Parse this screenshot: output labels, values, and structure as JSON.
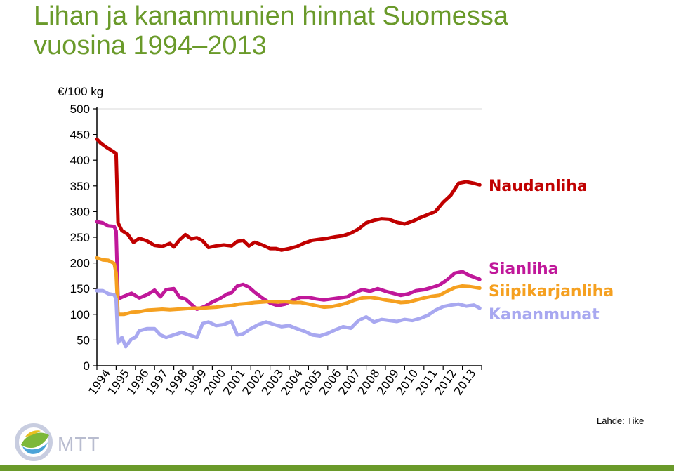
{
  "title_line1": "Lihan ja kananmunien hinnat Suomessa",
  "title_line2": "vuosina 1994–2013",
  "source": "Lähde: Tike",
  "logo_text": "MTT",
  "colors": {
    "title": "#6a9a2a",
    "naudanliha": "#c00000",
    "sianliha": "#c0189a",
    "siipikarjanliha": "#f5a020",
    "kananmunat": "#a8a8f0"
  },
  "chart_data": {
    "type": "line",
    "ylabel": "€/100 kg",
    "ylim": [
      0,
      500
    ],
    "yticks": [
      0,
      50,
      100,
      150,
      200,
      250,
      300,
      350,
      400,
      450,
      500
    ],
    "xlim": [
      1994,
      2014
    ],
    "xticks": [
      "1994",
      "1995",
      "1996",
      "1997",
      "1998",
      "1999",
      "2000",
      "2001",
      "2002",
      "2003",
      "2004",
      "2005",
      "2006",
      "2007",
      "2008",
      "2009",
      "2010",
      "2011",
      "2012",
      "2013"
    ],
    "series": [
      {
        "name": "Naudanliha",
        "color": "#c00000",
        "points": [
          [
            1994.0,
            441
          ],
          [
            1994.2,
            433
          ],
          [
            1994.5,
            425
          ],
          [
            1994.8,
            418
          ],
          [
            1995.0,
            413
          ],
          [
            1995.1,
            278
          ],
          [
            1995.3,
            263
          ],
          [
            1995.6,
            256
          ],
          [
            1995.9,
            240
          ],
          [
            1996.2,
            248
          ],
          [
            1996.6,
            243
          ],
          [
            1997.0,
            234
          ],
          [
            1997.4,
            232
          ],
          [
            1997.8,
            238
          ],
          [
            1998.0,
            231
          ],
          [
            1998.3,
            245
          ],
          [
            1998.6,
            255
          ],
          [
            1998.9,
            247
          ],
          [
            1999.2,
            249
          ],
          [
            1999.5,
            243
          ],
          [
            1999.8,
            230
          ],
          [
            2000.2,
            233
          ],
          [
            2000.6,
            235
          ],
          [
            2001.0,
            233
          ],
          [
            2001.3,
            242
          ],
          [
            2001.6,
            244
          ],
          [
            2001.9,
            233
          ],
          [
            2002.2,
            240
          ],
          [
            2002.6,
            235
          ],
          [
            2003.0,
            228
          ],
          [
            2003.3,
            228
          ],
          [
            2003.6,
            225
          ],
          [
            2004.0,
            228
          ],
          [
            2004.4,
            232
          ],
          [
            2004.8,
            239
          ],
          [
            2005.2,
            244
          ],
          [
            2005.6,
            246
          ],
          [
            2006.0,
            248
          ],
          [
            2006.4,
            251
          ],
          [
            2006.8,
            253
          ],
          [
            2007.2,
            258
          ],
          [
            2007.6,
            266
          ],
          [
            2008.0,
            278
          ],
          [
            2008.4,
            283
          ],
          [
            2008.8,
            286
          ],
          [
            2009.2,
            285
          ],
          [
            2009.6,
            279
          ],
          [
            2010.0,
            276
          ],
          [
            2010.4,
            281
          ],
          [
            2010.8,
            288
          ],
          [
            2011.2,
            294
          ],
          [
            2011.6,
            300
          ],
          [
            2012.0,
            318
          ],
          [
            2012.4,
            332
          ],
          [
            2012.8,
            355
          ],
          [
            2013.2,
            358
          ],
          [
            2013.6,
            355
          ],
          [
            2013.9,
            352
          ]
        ]
      },
      {
        "name": "Sianliha",
        "color": "#c0189a",
        "points": [
          [
            1994.0,
            280
          ],
          [
            1994.3,
            278
          ],
          [
            1994.6,
            272
          ],
          [
            1994.9,
            271
          ],
          [
            1995.0,
            262
          ],
          [
            1995.1,
            130
          ],
          [
            1995.4,
            135
          ],
          [
            1995.8,
            141
          ],
          [
            1996.2,
            132
          ],
          [
            1996.6,
            138
          ],
          [
            1997.0,
            147
          ],
          [
            1997.3,
            134
          ],
          [
            1997.6,
            148
          ],
          [
            1998.0,
            150
          ],
          [
            1998.3,
            133
          ],
          [
            1998.6,
            130
          ],
          [
            1998.9,
            120
          ],
          [
            1999.2,
            110
          ],
          [
            1999.6,
            115
          ],
          [
            2000.0,
            124
          ],
          [
            2000.4,
            131
          ],
          [
            2000.8,
            140
          ],
          [
            2001.0,
            142
          ],
          [
            2001.3,
            155
          ],
          [
            2001.6,
            158
          ],
          [
            2001.9,
            153
          ],
          [
            2002.2,
            143
          ],
          [
            2002.6,
            132
          ],
          [
            2003.0,
            122
          ],
          [
            2003.4,
            117
          ],
          [
            2003.8,
            120
          ],
          [
            2004.2,
            128
          ],
          [
            2004.6,
            133
          ],
          [
            2005.0,
            133
          ],
          [
            2005.4,
            130
          ],
          [
            2005.8,
            128
          ],
          [
            2006.2,
            130
          ],
          [
            2006.6,
            132
          ],
          [
            2007.0,
            134
          ],
          [
            2007.4,
            142
          ],
          [
            2007.8,
            148
          ],
          [
            2008.2,
            145
          ],
          [
            2008.6,
            150
          ],
          [
            2009.0,
            145
          ],
          [
            2009.4,
            141
          ],
          [
            2009.8,
            137
          ],
          [
            2010.2,
            140
          ],
          [
            2010.6,
            146
          ],
          [
            2011.0,
            148
          ],
          [
            2011.4,
            152
          ],
          [
            2011.8,
            157
          ],
          [
            2012.2,
            167
          ],
          [
            2012.6,
            180
          ],
          [
            2013.0,
            183
          ],
          [
            2013.4,
            175
          ],
          [
            2013.9,
            168
          ]
        ]
      },
      {
        "name": "Siipikarjanliha",
        "color": "#f5a020",
        "points": [
          [
            1994.0,
            210
          ],
          [
            1994.3,
            206
          ],
          [
            1994.6,
            205
          ],
          [
            1994.9,
            199
          ],
          [
            1995.0,
            180
          ],
          [
            1995.1,
            100
          ],
          [
            1995.4,
            100
          ],
          [
            1995.8,
            104
          ],
          [
            1996.2,
            105
          ],
          [
            1996.6,
            108
          ],
          [
            1997.0,
            109
          ],
          [
            1997.4,
            110
          ],
          [
            1997.8,
            109
          ],
          [
            1998.2,
            110
          ],
          [
            1998.6,
            111
          ],
          [
            1999.0,
            112
          ],
          [
            1999.4,
            112
          ],
          [
            1999.8,
            113
          ],
          [
            2000.2,
            114
          ],
          [
            2000.6,
            116
          ],
          [
            2001.0,
            117
          ],
          [
            2001.4,
            120
          ],
          [
            2001.8,
            121
          ],
          [
            2002.2,
            123
          ],
          [
            2002.6,
            124
          ],
          [
            2003.0,
            125
          ],
          [
            2003.4,
            124
          ],
          [
            2003.8,
            125
          ],
          [
            2004.2,
            123
          ],
          [
            2004.6,
            123
          ],
          [
            2005.0,
            120
          ],
          [
            2005.4,
            117
          ],
          [
            2005.8,
            114
          ],
          [
            2006.2,
            115
          ],
          [
            2006.6,
            118
          ],
          [
            2007.0,
            122
          ],
          [
            2007.4,
            128
          ],
          [
            2007.8,
            132
          ],
          [
            2008.2,
            133
          ],
          [
            2008.6,
            131
          ],
          [
            2009.0,
            128
          ],
          [
            2009.4,
            126
          ],
          [
            2009.8,
            123
          ],
          [
            2010.2,
            124
          ],
          [
            2010.6,
            128
          ],
          [
            2011.0,
            132
          ],
          [
            2011.4,
            135
          ],
          [
            2011.8,
            137
          ],
          [
            2012.2,
            145
          ],
          [
            2012.6,
            152
          ],
          [
            2013.0,
            155
          ],
          [
            2013.4,
            154
          ],
          [
            2013.9,
            151
          ]
        ]
      },
      {
        "name": "Kananmunat",
        "color": "#a8a8f0",
        "points": [
          [
            1994.0,
            146
          ],
          [
            1994.3,
            146
          ],
          [
            1994.6,
            140
          ],
          [
            1994.9,
            138
          ],
          [
            1995.0,
            130
          ],
          [
            1995.1,
            45
          ],
          [
            1995.3,
            55
          ],
          [
            1995.5,
            37
          ],
          [
            1995.8,
            52
          ],
          [
            1996.0,
            55
          ],
          [
            1996.2,
            68
          ],
          [
            1996.6,
            72
          ],
          [
            1997.0,
            72
          ],
          [
            1997.3,
            60
          ],
          [
            1997.6,
            55
          ],
          [
            1998.0,
            60
          ],
          [
            1998.4,
            65
          ],
          [
            1998.8,
            60
          ],
          [
            1999.2,
            55
          ],
          [
            1999.5,
            82
          ],
          [
            1999.8,
            85
          ],
          [
            2000.2,
            78
          ],
          [
            2000.6,
            80
          ],
          [
            2001.0,
            86
          ],
          [
            2001.3,
            60
          ],
          [
            2001.6,
            62
          ],
          [
            2002.0,
            72
          ],
          [
            2002.4,
            80
          ],
          [
            2002.8,
            85
          ],
          [
            2003.2,
            80
          ],
          [
            2003.6,
            76
          ],
          [
            2004.0,
            78
          ],
          [
            2004.4,
            72
          ],
          [
            2004.8,
            67
          ],
          [
            2005.2,
            60
          ],
          [
            2005.6,
            58
          ],
          [
            2006.0,
            63
          ],
          [
            2006.4,
            70
          ],
          [
            2006.8,
            76
          ],
          [
            2007.2,
            73
          ],
          [
            2007.6,
            88
          ],
          [
            2008.0,
            95
          ],
          [
            2008.4,
            85
          ],
          [
            2008.8,
            90
          ],
          [
            2009.2,
            88
          ],
          [
            2009.6,
            86
          ],
          [
            2010.0,
            90
          ],
          [
            2010.4,
            88
          ],
          [
            2010.8,
            92
          ],
          [
            2011.2,
            98
          ],
          [
            2011.6,
            108
          ],
          [
            2012.0,
            115
          ],
          [
            2012.4,
            118
          ],
          [
            2012.8,
            120
          ],
          [
            2013.2,
            116
          ],
          [
            2013.6,
            118
          ],
          [
            2013.9,
            112
          ]
        ]
      }
    ]
  }
}
